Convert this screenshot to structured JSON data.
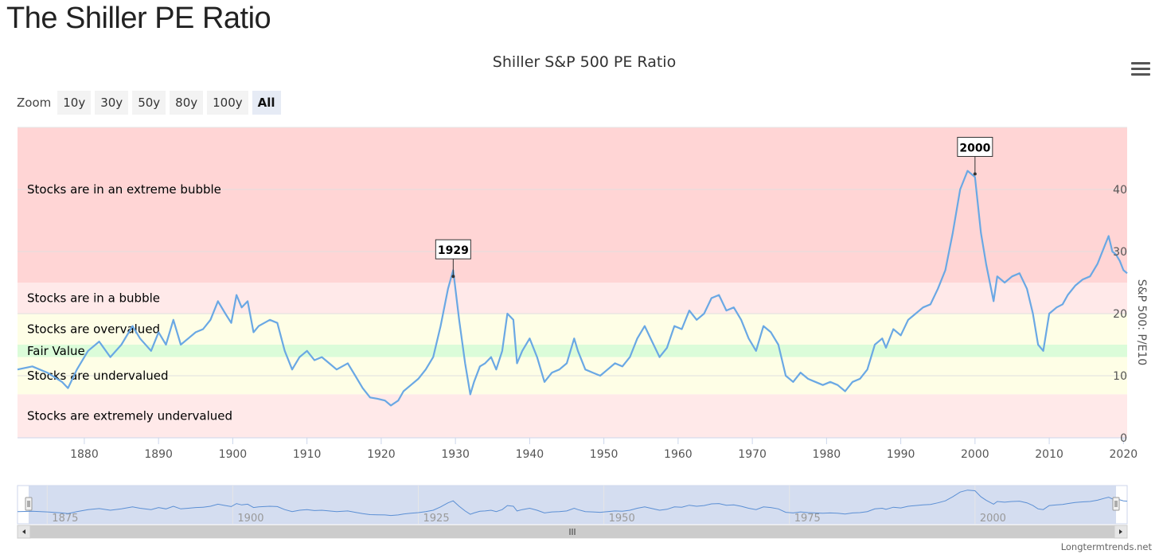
{
  "page": {
    "title": "The Shiller PE Ratio"
  },
  "toolbar": {
    "zoom_label": "Zoom",
    "buttons": [
      "10y",
      "30y",
      "50y",
      "80y",
      "100y",
      "All"
    ],
    "active": "All"
  },
  "credit": "Longtermtrends.net",
  "colors": {
    "line": "#6aa8e4",
    "extreme_bubble": "#ffd5d5",
    "bubble": "#ffe9e9",
    "overvalued": "#fefee6",
    "fair_value": "#dbfcd9",
    "undervalued": "#fefee6",
    "extremely_undervalued": "#ffe9e9",
    "navigator_mask": "#cfd9ee",
    "navigator_line": "#5b8fd4"
  },
  "chart_data": {
    "type": "line",
    "title": "Shiller S&P 500 PE Ratio",
    "ylabel": "S&P 500: P/E10",
    "xlim": [
      1871,
      2020.5
    ],
    "ylim": [
      0,
      50
    ],
    "x_ticks": [
      "1880",
      "1890",
      "1900",
      "1910",
      "1920",
      "1930",
      "1940",
      "1950",
      "1960",
      "1970",
      "1980",
      "1990",
      "2000",
      "2010",
      "2020"
    ],
    "y_ticks": [
      "0",
      "10",
      "20",
      "30",
      "40"
    ],
    "grid": true,
    "bands": [
      {
        "label": "Stocks are in an extreme bubble",
        "from": 25,
        "to": 50,
        "color_key": "extreme_bubble"
      },
      {
        "label": "Stocks are in a bubble",
        "from": 20,
        "to": 25,
        "color_key": "bubble"
      },
      {
        "label": "Stocks are overvalued",
        "from": 15,
        "to": 20,
        "color_key": "overvalued"
      },
      {
        "label": "Fair Value",
        "from": 13,
        "to": 15,
        "color_key": "fair_value"
      },
      {
        "label": "Stocks are undervalued",
        "from": 7,
        "to": 13,
        "color_key": "undervalued"
      },
      {
        "label": "Stocks are extremely undervalued",
        "from": 0,
        "to": 7,
        "color_key": "extremely_undervalued"
      }
    ],
    "annotations": [
      {
        "label": "1929",
        "x": 1929.7,
        "y": 26
      },
      {
        "label": "2000",
        "x": 2000.0,
        "y": 42.5
      }
    ],
    "series": [
      {
        "x": [
          1871.0,
          1873.0,
          1875.0,
          1877.0,
          1877.8,
          1879.0,
          1880.5,
          1882.0,
          1883.5,
          1885.0,
          1886.5,
          1887.5,
          1889.0,
          1890.0,
          1891.0,
          1892.0,
          1893.0,
          1894.0,
          1895.0,
          1896.0,
          1897.0,
          1898.0,
          1899.0,
          1899.8,
          1900.5,
          1901.2,
          1902.0,
          1902.8,
          1903.5,
          1905.0,
          1906.0,
          1907.0,
          1908.0,
          1909.0,
          1910.0,
          1911.0,
          1912.0,
          1913.0,
          1914.0,
          1915.5,
          1916.5,
          1917.5,
          1918.5,
          1919.5,
          1920.5,
          1921.3,
          1922.3,
          1923.0,
          1924.0,
          1925.0,
          1926.0,
          1927.0,
          1928.0,
          1929.0,
          1929.7,
          1930.5,
          1931.3,
          1932.0,
          1932.5,
          1933.3,
          1934.0,
          1934.8,
          1935.5,
          1936.3,
          1937.0,
          1937.8,
          1938.3,
          1939.0,
          1940.0,
          1941.0,
          1942.0,
          1943.0,
          1944.0,
          1945.0,
          1946.0,
          1946.5,
          1947.5,
          1948.5,
          1949.5,
          1950.5,
          1951.5,
          1952.5,
          1953.5,
          1954.5,
          1955.5,
          1956.5,
          1957.5,
          1958.5,
          1959.5,
          1960.5,
          1961.5,
          1962.5,
          1963.5,
          1964.5,
          1965.5,
          1966.5,
          1967.5,
          1968.5,
          1969.5,
          1970.5,
          1971.5,
          1972.5,
          1973.5,
          1974.5,
          1975.5,
          1976.5,
          1977.5,
          1978.5,
          1979.5,
          1980.5,
          1981.5,
          1982.5,
          1983.5,
          1984.5,
          1985.5,
          1986.5,
          1987.5,
          1988.0,
          1989.0,
          1990.0,
          1991.0,
          1992.0,
          1993.0,
          1994.0,
          1995.0,
          1996.0,
          1997.0,
          1998.0,
          1999.0,
          2000.0,
          2000.8,
          2001.5,
          2002.5,
          2003.0,
          2004.0,
          2005.0,
          2006.0,
          2007.0,
          2007.8,
          2008.5,
          2009.2,
          2010.0,
          2011.0,
          2011.8,
          2012.5,
          2013.5,
          2014.5,
          2015.5,
          2016.5,
          2017.5,
          2018.0,
          2018.5,
          2019.0,
          2019.5,
          2020.0,
          2020.5
        ],
        "y": [
          11,
          11.5,
          10.5,
          9,
          8,
          11,
          14,
          15.5,
          13,
          15,
          18,
          16,
          14,
          17,
          15,
          19,
          15,
          16,
          17,
          17.5,
          19,
          22,
          20,
          18.5,
          23,
          21,
          22,
          17,
          18,
          19,
          18.5,
          14,
          11,
          13,
          14,
          12.5,
          13,
          12,
          11,
          12,
          10,
          8,
          6.5,
          6.3,
          6,
          5.2,
          6,
          7.5,
          8.5,
          9.5,
          11,
          13,
          18,
          24,
          27,
          19,
          12,
          7,
          9,
          11.5,
          12,
          13,
          11,
          14,
          20,
          19,
          12,
          14,
          16,
          13,
          9,
          10.5,
          11,
          12,
          16,
          14,
          11,
          10.5,
          10,
          11,
          12,
          11.5,
          13,
          16,
          18,
          15.5,
          13,
          14.5,
          18,
          17.5,
          20.5,
          19,
          20,
          22.5,
          23,
          20.5,
          21,
          19,
          16,
          14,
          18,
          17,
          15,
          10,
          9,
          10.5,
          9.5,
          9,
          8.5,
          9,
          8.5,
          7.5,
          9,
          9.5,
          11,
          15,
          16,
          14.5,
          17.5,
          16.5,
          19,
          20,
          21,
          21.5,
          24,
          27,
          33,
          40,
          43,
          42,
          33,
          28,
          22,
          26,
          25,
          26,
          26.5,
          24,
          20,
          15,
          14,
          20,
          21,
          21.5,
          23,
          24.5,
          25.5,
          26,
          28,
          31,
          32.5,
          30,
          29.5,
          28.5,
          27,
          26.5
        ]
      }
    ],
    "navigator": {
      "x_ticks": [
        "1875",
        "1900",
        "1925",
        "1950",
        "1975",
        "2000"
      ],
      "range": [
        1872.5,
        2019
      ]
    }
  }
}
